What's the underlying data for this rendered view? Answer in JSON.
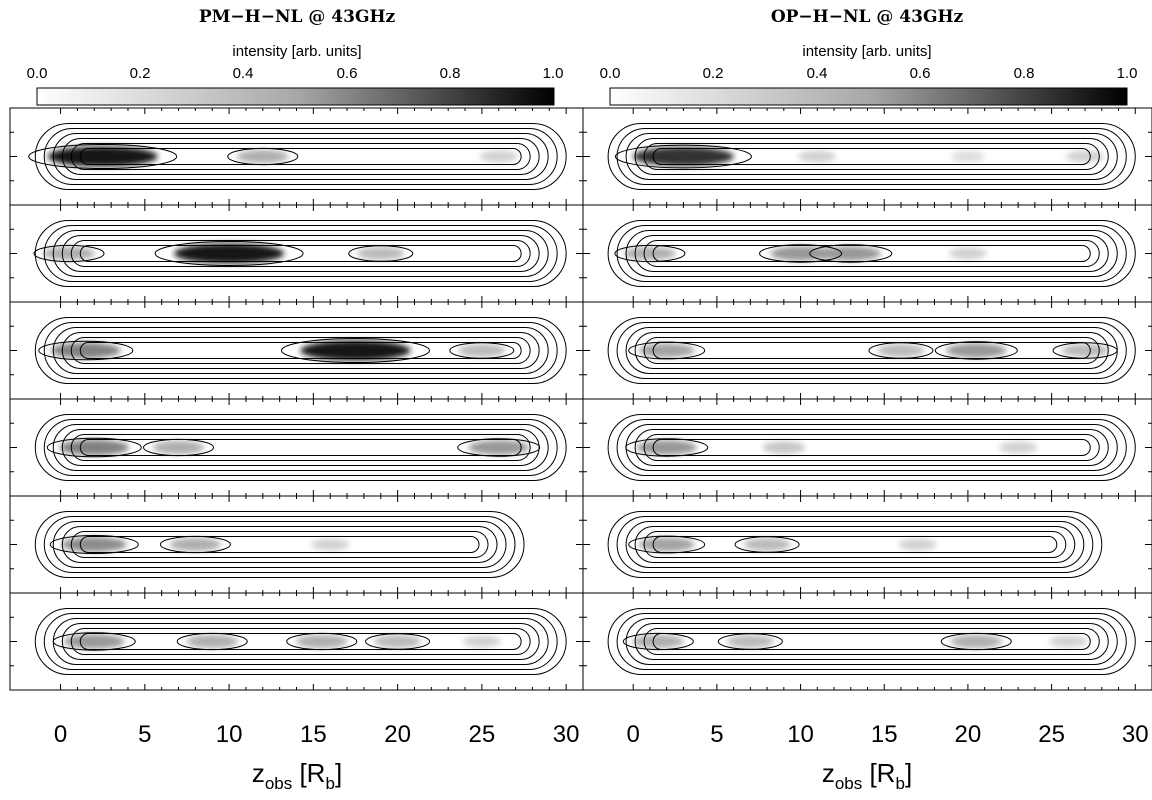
{
  "chart_data": [
    {
      "type": "heatmap",
      "title": "PM−H−NL @ 43GHz",
      "colorbar": {
        "label": "intensity [arb. units]",
        "ticks": [
          "0.0",
          "0.2",
          "0.4",
          "0.6",
          "0.8",
          "1.0"
        ],
        "range": [
          0,
          1
        ],
        "colormap": "white-to-black"
      },
      "xlabel_main": "z",
      "xlabel_sub": "obs",
      "xlabel_unit_open": " [R",
      "xlabel_unit_sub": "b",
      "xlabel_unit_close": "]",
      "xticks": [
        "0",
        "5",
        "10",
        "15",
        "20",
        "25",
        "30"
      ],
      "xlim": [
        -3,
        31
      ],
      "panels": [
        {
          "extent": [
            -1.5,
            30
          ],
          "blobs": [
            {
              "x": 2.5,
              "intensity": 1.0
            },
            {
              "x": 12,
              "intensity": 0.35
            },
            {
              "x": 26,
              "intensity": 0.2
            }
          ]
        },
        {
          "extent": [
            -1.5,
            30
          ],
          "blobs": [
            {
              "x": 0.5,
              "intensity": 0.35
            },
            {
              "x": 10,
              "intensity": 1.0
            },
            {
              "x": 19,
              "intensity": 0.3
            }
          ]
        },
        {
          "extent": [
            -1.5,
            30
          ],
          "blobs": [
            {
              "x": 1.5,
              "intensity": 0.55
            },
            {
              "x": 17.5,
              "intensity": 1.0
            },
            {
              "x": 25,
              "intensity": 0.3
            }
          ]
        },
        {
          "extent": [
            -1.5,
            30
          ],
          "blobs": [
            {
              "x": 2,
              "intensity": 0.55
            },
            {
              "x": 7,
              "intensity": 0.35
            },
            {
              "x": 26,
              "intensity": 0.45
            }
          ]
        },
        {
          "extent": [
            -1.5,
            27.5
          ],
          "blobs": [
            {
              "x": 2,
              "intensity": 0.5
            },
            {
              "x": 8,
              "intensity": 0.35
            },
            {
              "x": 16,
              "intensity": 0.2
            }
          ]
        },
        {
          "extent": [
            -1.5,
            30
          ],
          "blobs": [
            {
              "x": 2,
              "intensity": 0.45
            },
            {
              "x": 9,
              "intensity": 0.35
            },
            {
              "x": 15.5,
              "intensity": 0.35
            },
            {
              "x": 20,
              "intensity": 0.3
            },
            {
              "x": 25,
              "intensity": 0.2
            }
          ]
        }
      ]
    },
    {
      "type": "heatmap",
      "title": "OP−H−NL @ 43GHz",
      "colorbar": {
        "label": "intensity [arb. units]",
        "ticks": [
          "0.0",
          "0.2",
          "0.4",
          "0.6",
          "0.8",
          "1.0"
        ],
        "range": [
          0,
          1
        ],
        "colormap": "white-to-black"
      },
      "xlabel_main": "z",
      "xlabel_sub": "obs",
      "xlabel_unit_open": " [R",
      "xlabel_unit_sub": "b",
      "xlabel_unit_close": "]",
      "xticks": [
        "0",
        "5",
        "10",
        "15",
        "20",
        "25",
        "30"
      ],
      "xlim": [
        -3,
        31
      ],
      "panels": [
        {
          "extent": [
            -1.5,
            30
          ],
          "blobs": [
            {
              "x": 3,
              "intensity": 0.9
            },
            {
              "x": 11,
              "intensity": 0.2
            },
            {
              "x": 20,
              "intensity": 0.15
            },
            {
              "x": 27,
              "intensity": 0.2
            }
          ]
        },
        {
          "extent": [
            -1.5,
            30
          ],
          "blobs": [
            {
              "x": 1,
              "intensity": 0.35
            },
            {
              "x": 10,
              "intensity": 0.45
            },
            {
              "x": 13,
              "intensity": 0.45
            },
            {
              "x": 20,
              "intensity": 0.2
            }
          ]
        },
        {
          "extent": [
            -1.5,
            30
          ],
          "blobs": [
            {
              "x": 2,
              "intensity": 0.4
            },
            {
              "x": 16,
              "intensity": 0.3
            },
            {
              "x": 20.5,
              "intensity": 0.45
            },
            {
              "x": 27,
              "intensity": 0.3
            }
          ]
        },
        {
          "extent": [
            -1.5,
            30
          ],
          "blobs": [
            {
              "x": 2,
              "intensity": 0.45
            },
            {
              "x": 9,
              "intensity": 0.25
            },
            {
              "x": 23,
              "intensity": 0.2
            }
          ]
        },
        {
          "extent": [
            -1.5,
            28
          ],
          "blobs": [
            {
              "x": 2,
              "intensity": 0.4
            },
            {
              "x": 8,
              "intensity": 0.3
            },
            {
              "x": 17,
              "intensity": 0.2
            }
          ]
        },
        {
          "extent": [
            -1.5,
            30
          ],
          "blobs": [
            {
              "x": 1.5,
              "intensity": 0.35
            },
            {
              "x": 7,
              "intensity": 0.3
            },
            {
              "x": 20.5,
              "intensity": 0.35
            },
            {
              "x": 26,
              "intensity": 0.2
            }
          ]
        }
      ]
    }
  ]
}
